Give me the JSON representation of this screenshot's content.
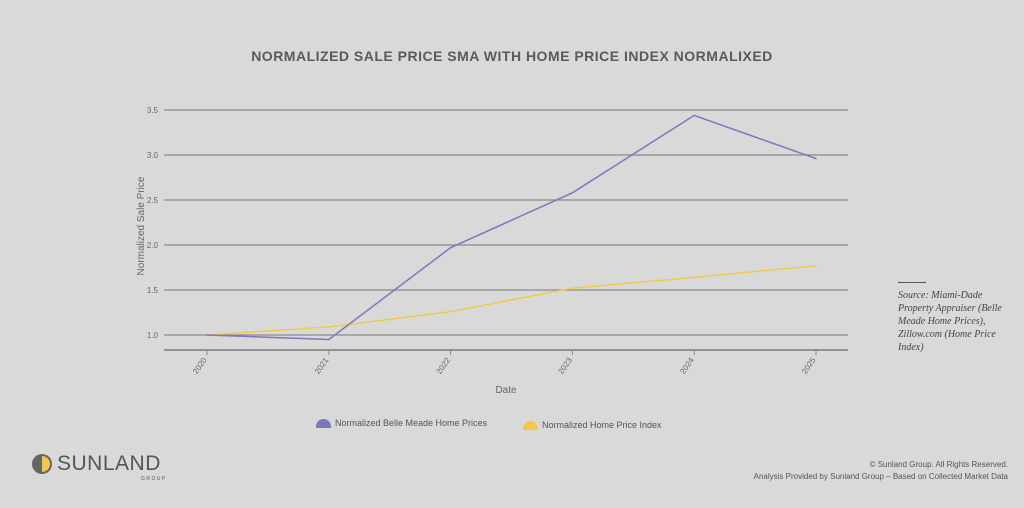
{
  "chart_data": {
    "type": "line",
    "title": "NORMALIZED SALE PRICE SMA WITH HOME PRICE INDEX NORMALIXED",
    "xlabel": "Date",
    "ylabel": "Normalized Sale Price",
    "categories": [
      "2020",
      "2021",
      "2022",
      "2023",
      "2024",
      "2025"
    ],
    "yticks": [
      "1.0",
      "1.5",
      "2.0",
      "2.5",
      "3.0",
      "3.5"
    ],
    "ylim": [
      0.83,
      3.5
    ],
    "grid": true,
    "legend_position": "bottom",
    "series": [
      {
        "name": "Normalized Belle Meade Home Prices",
        "color": "#7b78bb",
        "values": [
          1.0,
          0.95,
          1.97,
          2.58,
          3.44,
          2.96
        ]
      },
      {
        "name": "Normalized Home Price Index",
        "color": "#f2c94c",
        "values": [
          1.0,
          1.09,
          1.26,
          1.52,
          1.64,
          1.77
        ]
      }
    ]
  },
  "source": "Source: Miami-Dade Property Appraiser (Belle Meade Home Prices), Zillow.com (Home Price Index)",
  "logo": {
    "name": "SUNLAND",
    "sub": "GROUP"
  },
  "footer": {
    "copyright": "© Sunland Group. All Rights Reserved.",
    "analysis": "Analysis Provided by Sunland Group – Based on Collected Market Data"
  }
}
